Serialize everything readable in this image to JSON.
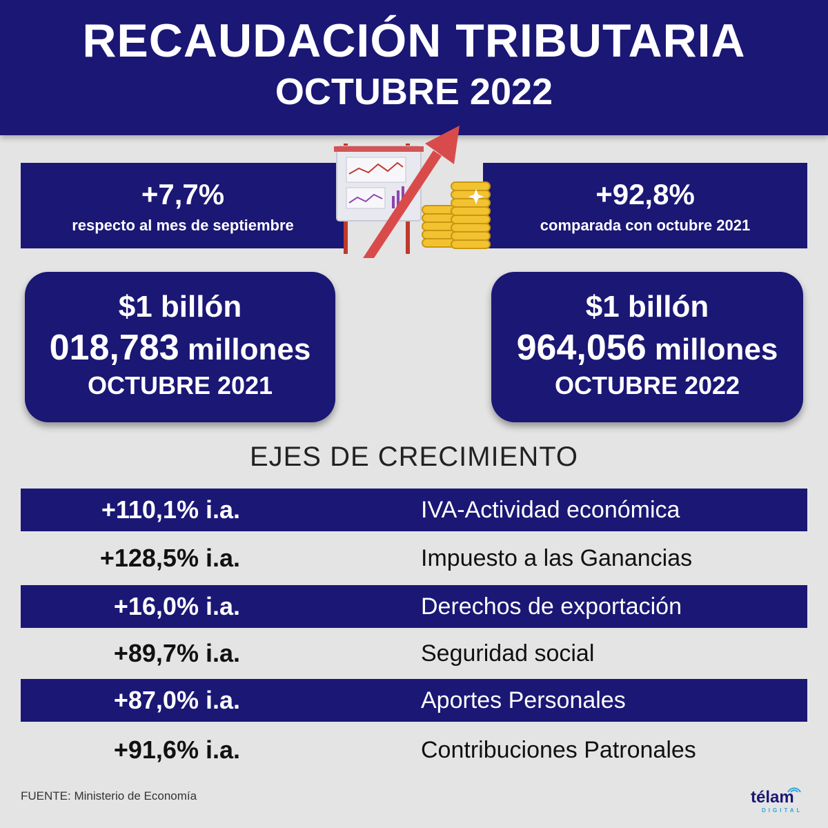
{
  "header": {
    "title": "RECAUDACIÓN TRIBUTARIA",
    "subtitle": "OCTUBRE 2022"
  },
  "left_band": {
    "percent": "+7,7%",
    "caption": "respecto al mes de septiembre"
  },
  "right_band": {
    "percent": "+92,8%",
    "caption": "comparada con octubre 2021"
  },
  "illustration": {
    "icon": "growth-chart-with-coins-icon"
  },
  "cards": [
    {
      "line1": "$1 billón",
      "line2_number": "018,783",
      "line2_unit": "millones",
      "line3": "OCTUBRE 2021"
    },
    {
      "line1": "$1 billón",
      "line2_number": "964,056",
      "line2_unit": "millones",
      "line3": "OCTUBRE 2022"
    }
  ],
  "growth": {
    "title": "EJES DE CRECIMIENTO",
    "rows": [
      {
        "value": "+110,1% i.a.",
        "label": "IVA-Actividad económica"
      },
      {
        "value": "+128,5% i.a.",
        "label": "Impuesto a las Ganancias"
      },
      {
        "value": "+16,0% i.a.",
        "label": "Derechos de exportación"
      },
      {
        "value": "+89,7% i.a.",
        "label": "Seguridad social"
      },
      {
        "value": "+87,0% i.a.",
        "label": "Aportes Personales"
      },
      {
        "value": "+91,6% i.a.",
        "label": "Contribuciones Patronales"
      }
    ]
  },
  "footer": {
    "source": "FUENTE: Ministerio de Economía",
    "logo_text": "télam",
    "logo_sub": "DIGITAL"
  },
  "colors": {
    "navy": "#1b1775",
    "background": "#e4e4e4",
    "arrow": "#d94b4b",
    "coin": "#f2c230"
  }
}
